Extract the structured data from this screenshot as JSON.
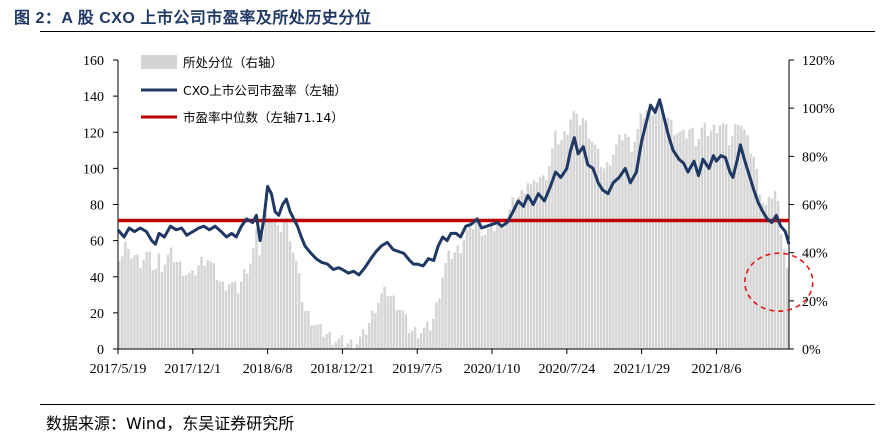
{
  "title": "图 2：A 股 CXO 上市公司市盈率及所处历史分位",
  "source": "数据来源：Wind，东吴证券研究所",
  "colors": {
    "bar": "#d4d4d4",
    "pe_line": "#1f3864",
    "median": "#c00000",
    "circle": "#e31a1c",
    "title": "#1f3864"
  },
  "chart_data": {
    "type": "bar+line",
    "title": "A 股 CXO 上市公司市盈率及所处历史分位",
    "xlabel": "",
    "ylabel_left": "",
    "ylabel_right": "",
    "y_left": {
      "min": 0,
      "max": 160,
      "ticks": [
        "0",
        "20",
        "40",
        "60",
        "80",
        "100",
        "120",
        "140",
        "160"
      ]
    },
    "y_right": {
      "min": 0,
      "max": 120,
      "ticks": [
        "0%",
        "20%",
        "40%",
        "60%",
        "80%",
        "100%",
        "120%"
      ]
    },
    "x_tick_labels": [
      "2017/5/19",
      "2017/12/1",
      "2018/6/8",
      "2018/12/21",
      "2019/7/5",
      "2020/1/10",
      "2020/7/24",
      "2021/1/29",
      "2021/8/6"
    ],
    "legend": [
      {
        "name": "所处分位（右轴）",
        "kind": "bar"
      },
      {
        "name": "CXO上市公司市盈率（左轴）",
        "kind": "line"
      },
      {
        "name": "市盈率中位数（左轴71.14）",
        "kind": "hline"
      }
    ],
    "median_pe": 71.14,
    "series_pe": [
      {
        "x": 0.0,
        "y": 66
      },
      {
        "x": 0.08,
        "y": 62
      },
      {
        "x": 0.15,
        "y": 67
      },
      {
        "x": 0.22,
        "y": 65
      },
      {
        "x": 0.3,
        "y": 67
      },
      {
        "x": 0.38,
        "y": 65
      },
      {
        "x": 0.45,
        "y": 60
      },
      {
        "x": 0.5,
        "y": 58
      },
      {
        "x": 0.55,
        "y": 64
      },
      {
        "x": 0.62,
        "y": 62
      },
      {
        "x": 0.7,
        "y": 68
      },
      {
        "x": 0.78,
        "y": 66
      },
      {
        "x": 0.85,
        "y": 67
      },
      {
        "x": 0.92,
        "y": 63
      },
      {
        "x": 1.0,
        "y": 65
      },
      {
        "x": 1.08,
        "y": 67
      },
      {
        "x": 1.15,
        "y": 68
      },
      {
        "x": 1.22,
        "y": 66
      },
      {
        "x": 1.3,
        "y": 68
      },
      {
        "x": 1.38,
        "y": 65
      },
      {
        "x": 1.45,
        "y": 62
      },
      {
        "x": 1.52,
        "y": 64
      },
      {
        "x": 1.58,
        "y": 62
      },
      {
        "x": 1.65,
        "y": 68
      },
      {
        "x": 1.72,
        "y": 72
      },
      {
        "x": 1.8,
        "y": 70
      },
      {
        "x": 1.85,
        "y": 74
      },
      {
        "x": 1.9,
        "y": 60
      },
      {
        "x": 1.95,
        "y": 72
      },
      {
        "x": 2.0,
        "y": 90
      },
      {
        "x": 2.05,
        "y": 86
      },
      {
        "x": 2.1,
        "y": 76
      },
      {
        "x": 2.15,
        "y": 74
      },
      {
        "x": 2.2,
        "y": 80
      },
      {
        "x": 2.25,
        "y": 83
      },
      {
        "x": 2.3,
        "y": 76
      },
      {
        "x": 2.35,
        "y": 72
      },
      {
        "x": 2.4,
        "y": 68
      },
      {
        "x": 2.45,
        "y": 62
      },
      {
        "x": 2.5,
        "y": 57
      },
      {
        "x": 2.58,
        "y": 53
      },
      {
        "x": 2.65,
        "y": 50
      },
      {
        "x": 2.72,
        "y": 48
      },
      {
        "x": 2.8,
        "y": 47
      },
      {
        "x": 2.88,
        "y": 44
      },
      {
        "x": 2.95,
        "y": 45
      },
      {
        "x": 3.0,
        "y": 44
      },
      {
        "x": 3.08,
        "y": 42
      },
      {
        "x": 3.15,
        "y": 43
      },
      {
        "x": 3.22,
        "y": 41
      },
      {
        "x": 3.3,
        "y": 45
      },
      {
        "x": 3.38,
        "y": 50
      },
      {
        "x": 3.45,
        "y": 54
      },
      {
        "x": 3.52,
        "y": 57
      },
      {
        "x": 3.6,
        "y": 59
      },
      {
        "x": 3.68,
        "y": 55
      },
      {
        "x": 3.75,
        "y": 54
      },
      {
        "x": 3.82,
        "y": 53
      },
      {
        "x": 3.9,
        "y": 49
      },
      {
        "x": 3.95,
        "y": 47
      },
      {
        "x": 4.0,
        "y": 47
      },
      {
        "x": 4.08,
        "y": 46
      },
      {
        "x": 4.15,
        "y": 50
      },
      {
        "x": 4.22,
        "y": 49
      },
      {
        "x": 4.28,
        "y": 57
      },
      {
        "x": 4.34,
        "y": 62
      },
      {
        "x": 4.4,
        "y": 60
      },
      {
        "x": 4.45,
        "y": 64
      },
      {
        "x": 4.52,
        "y": 64
      },
      {
        "x": 4.58,
        "y": 62
      },
      {
        "x": 4.65,
        "y": 68
      },
      {
        "x": 4.72,
        "y": 69
      },
      {
        "x": 4.8,
        "y": 72
      },
      {
        "x": 4.86,
        "y": 67
      },
      {
        "x": 4.93,
        "y": 68
      },
      {
        "x": 5.0,
        "y": 69
      },
      {
        "x": 5.07,
        "y": 70
      },
      {
        "x": 5.13,
        "y": 68
      },
      {
        "x": 5.2,
        "y": 70
      },
      {
        "x": 5.28,
        "y": 76
      },
      {
        "x": 5.35,
        "y": 82
      },
      {
        "x": 5.42,
        "y": 79
      },
      {
        "x": 5.48,
        "y": 85
      },
      {
        "x": 5.55,
        "y": 80
      },
      {
        "x": 5.62,
        "y": 86
      },
      {
        "x": 5.7,
        "y": 82
      },
      {
        "x": 5.78,
        "y": 90
      },
      {
        "x": 5.85,
        "y": 98
      },
      {
        "x": 5.92,
        "y": 95
      },
      {
        "x": 6.0,
        "y": 100
      },
      {
        "x": 6.05,
        "y": 110
      },
      {
        "x": 6.1,
        "y": 117
      },
      {
        "x": 6.15,
        "y": 108
      },
      {
        "x": 6.22,
        "y": 112
      },
      {
        "x": 6.28,
        "y": 102
      },
      {
        "x": 6.35,
        "y": 100
      },
      {
        "x": 6.42,
        "y": 92
      },
      {
        "x": 6.48,
        "y": 88
      },
      {
        "x": 6.55,
        "y": 86
      },
      {
        "x": 6.62,
        "y": 92
      },
      {
        "x": 6.7,
        "y": 95
      },
      {
        "x": 6.78,
        "y": 100
      },
      {
        "x": 6.85,
        "y": 92
      },
      {
        "x": 6.93,
        "y": 98
      },
      {
        "x": 7.0,
        "y": 115
      },
      {
        "x": 7.06,
        "y": 125
      },
      {
        "x": 7.12,
        "y": 135
      },
      {
        "x": 7.18,
        "y": 131
      },
      {
        "x": 7.24,
        "y": 138
      },
      {
        "x": 7.3,
        "y": 128
      },
      {
        "x": 7.36,
        "y": 118
      },
      {
        "x": 7.42,
        "y": 110
      },
      {
        "x": 7.5,
        "y": 105
      },
      {
        "x": 7.56,
        "y": 103
      },
      {
        "x": 7.62,
        "y": 98
      },
      {
        "x": 7.7,
        "y": 104
      },
      {
        "x": 7.76,
        "y": 96
      },
      {
        "x": 7.82,
        "y": 105
      },
      {
        "x": 7.9,
        "y": 100
      },
      {
        "x": 7.96,
        "y": 107
      },
      {
        "x": 8.0,
        "y": 104
      },
      {
        "x": 8.06,
        "y": 107
      },
      {
        "x": 8.12,
        "y": 106
      },
      {
        "x": 8.18,
        "y": 98
      },
      {
        "x": 8.22,
        "y": 95
      },
      {
        "x": 8.28,
        "y": 105
      },
      {
        "x": 8.32,
        "y": 113
      },
      {
        "x": 8.38,
        "y": 104
      },
      {
        "x": 8.44,
        "y": 96
      },
      {
        "x": 8.5,
        "y": 88
      },
      {
        "x": 8.56,
        "y": 81
      },
      {
        "x": 8.62,
        "y": 76
      },
      {
        "x": 8.68,
        "y": 72
      },
      {
        "x": 8.74,
        "y": 70
      },
      {
        "x": 8.8,
        "y": 74
      },
      {
        "x": 8.86,
        "y": 68
      },
      {
        "x": 8.92,
        "y": 65
      },
      {
        "x": 8.97,
        "y": 58
      }
    ],
    "series_percentile": [
      {
        "x": 0.0,
        "y": 40
      },
      {
        "x": 0.05,
        "y": 38
      },
      {
        "x": 0.1,
        "y": 44
      },
      {
        "x": 0.15,
        "y": 38
      },
      {
        "x": 0.2,
        "y": 40
      },
      {
        "x": 0.3,
        "y": 36
      },
      {
        "x": 0.4,
        "y": 40
      },
      {
        "x": 0.5,
        "y": 32
      },
      {
        "x": 0.55,
        "y": 38
      },
      {
        "x": 0.6,
        "y": 34
      },
      {
        "x": 0.7,
        "y": 40
      },
      {
        "x": 0.8,
        "y": 36
      },
      {
        "x": 0.9,
        "y": 32
      },
      {
        "x": 1.0,
        "y": 30
      },
      {
        "x": 1.1,
        "y": 36
      },
      {
        "x": 1.2,
        "y": 38
      },
      {
        "x": 1.3,
        "y": 32
      },
      {
        "x": 1.4,
        "y": 26
      },
      {
        "x": 1.5,
        "y": 28
      },
      {
        "x": 1.6,
        "y": 24
      },
      {
        "x": 1.7,
        "y": 32
      },
      {
        "x": 1.8,
        "y": 38
      },
      {
        "x": 1.85,
        "y": 48
      },
      {
        "x": 1.9,
        "y": 40
      },
      {
        "x": 1.95,
        "y": 50
      },
      {
        "x": 2.0,
        "y": 58
      },
      {
        "x": 2.05,
        "y": 56
      },
      {
        "x": 2.1,
        "y": 52
      },
      {
        "x": 2.15,
        "y": 48
      },
      {
        "x": 2.2,
        "y": 52
      },
      {
        "x": 2.25,
        "y": 54
      },
      {
        "x": 2.3,
        "y": 48
      },
      {
        "x": 2.35,
        "y": 40
      },
      {
        "x": 2.4,
        "y": 34
      },
      {
        "x": 2.45,
        "y": 24
      },
      {
        "x": 2.5,
        "y": 16
      },
      {
        "x": 2.6,
        "y": 12
      },
      {
        "x": 2.7,
        "y": 8
      },
      {
        "x": 2.8,
        "y": 6
      },
      {
        "x": 2.9,
        "y": 4
      },
      {
        "x": 3.0,
        "y": 3
      },
      {
        "x": 3.1,
        "y": 2
      },
      {
        "x": 3.2,
        "y": 3
      },
      {
        "x": 3.3,
        "y": 6
      },
      {
        "x": 3.38,
        "y": 12
      },
      {
        "x": 3.45,
        "y": 18
      },
      {
        "x": 3.52,
        "y": 22
      },
      {
        "x": 3.6,
        "y": 24
      },
      {
        "x": 3.7,
        "y": 20
      },
      {
        "x": 3.8,
        "y": 16
      },
      {
        "x": 3.9,
        "y": 8
      },
      {
        "x": 4.0,
        "y": 7
      },
      {
        "x": 4.1,
        "y": 8
      },
      {
        "x": 4.2,
        "y": 10
      },
      {
        "x": 4.28,
        "y": 20
      },
      {
        "x": 4.35,
        "y": 32
      },
      {
        "x": 4.42,
        "y": 38
      },
      {
        "x": 4.5,
        "y": 40
      },
      {
        "x": 4.58,
        "y": 42
      },
      {
        "x": 4.65,
        "y": 48
      },
      {
        "x": 4.72,
        "y": 50
      },
      {
        "x": 4.8,
        "y": 54
      },
      {
        "x": 4.9,
        "y": 48
      },
      {
        "x": 5.0,
        "y": 50
      },
      {
        "x": 5.1,
        "y": 52
      },
      {
        "x": 5.2,
        "y": 54
      },
      {
        "x": 5.3,
        "y": 62
      },
      {
        "x": 5.4,
        "y": 64
      },
      {
        "x": 5.48,
        "y": 70
      },
      {
        "x": 5.55,
        "y": 66
      },
      {
        "x": 5.62,
        "y": 72
      },
      {
        "x": 5.7,
        "y": 70
      },
      {
        "x": 5.78,
        "y": 78
      },
      {
        "x": 5.85,
        "y": 88
      },
      {
        "x": 5.92,
        "y": 86
      },
      {
        "x": 6.0,
        "y": 90
      },
      {
        "x": 6.05,
        "y": 96
      },
      {
        "x": 6.1,
        "y": 98
      },
      {
        "x": 6.15,
        "y": 94
      },
      {
        "x": 6.22,
        "y": 96
      },
      {
        "x": 6.3,
        "y": 90
      },
      {
        "x": 6.38,
        "y": 84
      },
      {
        "x": 6.45,
        "y": 78
      },
      {
        "x": 6.52,
        "y": 74
      },
      {
        "x": 6.6,
        "y": 80
      },
      {
        "x": 6.7,
        "y": 86
      },
      {
        "x": 6.78,
        "y": 90
      },
      {
        "x": 6.86,
        "y": 84
      },
      {
        "x": 6.93,
        "y": 88
      },
      {
        "x": 7.0,
        "y": 96
      },
      {
        "x": 7.06,
        "y": 99
      },
      {
        "x": 7.12,
        "y": 100
      },
      {
        "x": 7.18,
        "y": 100
      },
      {
        "x": 7.24,
        "y": 100
      },
      {
        "x": 7.3,
        "y": 98
      },
      {
        "x": 7.36,
        "y": 96
      },
      {
        "x": 7.42,
        "y": 92
      },
      {
        "x": 7.5,
        "y": 90
      },
      {
        "x": 7.58,
        "y": 88
      },
      {
        "x": 7.66,
        "y": 92
      },
      {
        "x": 7.74,
        "y": 86
      },
      {
        "x": 7.82,
        "y": 92
      },
      {
        "x": 7.9,
        "y": 90
      },
      {
        "x": 8.0,
        "y": 92
      },
      {
        "x": 8.06,
        "y": 94
      },
      {
        "x": 8.12,
        "y": 92
      },
      {
        "x": 8.18,
        "y": 86
      },
      {
        "x": 8.24,
        "y": 90
      },
      {
        "x": 8.3,
        "y": 96
      },
      {
        "x": 8.36,
        "y": 92
      },
      {
        "x": 8.42,
        "y": 86
      },
      {
        "x": 8.5,
        "y": 80
      },
      {
        "x": 8.56,
        "y": 70
      },
      {
        "x": 8.62,
        "y": 62
      },
      {
        "x": 8.68,
        "y": 58
      },
      {
        "x": 8.74,
        "y": 64
      },
      {
        "x": 8.8,
        "y": 66
      },
      {
        "x": 8.86,
        "y": 52
      },
      {
        "x": 8.92,
        "y": 40
      },
      {
        "x": 8.97,
        "y": 28
      }
    ],
    "annotation": {
      "type": "dashed-circle",
      "note": "latest point highlighted",
      "center_x": 8.7,
      "center_pe": 37
    }
  }
}
